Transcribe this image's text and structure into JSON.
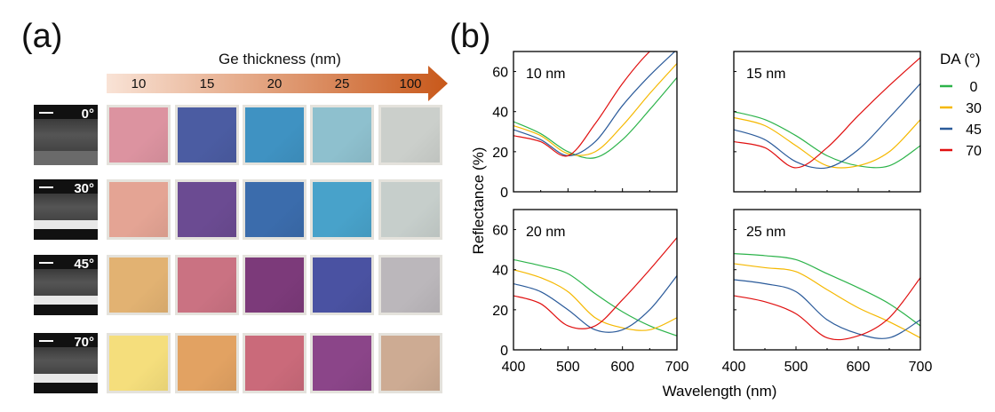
{
  "panel_a": {
    "label": "(a)",
    "arrow_title": "Ge thickness (nm)",
    "thickness_labels": [
      "10",
      "15",
      "20",
      "25",
      "100"
    ],
    "arrow_colors": [
      "#f9e3d6",
      "#c8581a"
    ],
    "rows": [
      {
        "angle": "0°",
        "colors": [
          "#dc93a0",
          "#4b5ca2",
          "#3f92c2",
          "#8ec0ce",
          "#cbcfcb"
        ]
      },
      {
        "angle": "30°",
        "colors": [
          "#e4a494",
          "#6b4b92",
          "#3b6cac",
          "#48a2ca",
          "#c6cecb"
        ]
      },
      {
        "angle": "45°",
        "colors": [
          "#e2b272",
          "#ca7282",
          "#7c3a7a",
          "#4a52a2",
          "#bbb7bb"
        ]
      },
      {
        "angle": "70°",
        "colors": [
          "#f5de7c",
          "#e2a262",
          "#ca6a7a",
          "#8b4589",
          "#cdab93"
        ]
      }
    ]
  },
  "panel_b": {
    "label": "(b)"
  },
  "chart_data": {
    "type": "line",
    "xlabel": "Wavelength (nm)",
    "ylabel": "Reflectance (%)",
    "xlim": [
      400,
      700
    ],
    "ylim": [
      0,
      70
    ],
    "xticks": [
      400,
      500,
      600,
      700
    ],
    "yticks": [
      0,
      20,
      40,
      60
    ],
    "legend": {
      "title": "DA (°)",
      "placement": "right",
      "entries": [
        {
          "name": "0",
          "color": "#2cb34a"
        },
        {
          "name": "30",
          "color": "#f5b800"
        },
        {
          "name": "45",
          "color": "#2a5a9a"
        },
        {
          "name": "70",
          "color": "#e01010"
        }
      ]
    },
    "x": [
      400,
      450,
      500,
      550,
      600,
      650,
      700
    ],
    "subplots": [
      {
        "title": "10 nm",
        "series": [
          {
            "name": "0",
            "values": [
              35,
              29,
              20,
              17,
              26,
              41,
              57
            ]
          },
          {
            "name": "30",
            "values": [
              33,
              28,
              19,
              20,
              33,
              49,
              64
            ]
          },
          {
            "name": "45",
            "values": [
              31,
              26,
              18,
              25,
              43,
              58,
              71
            ]
          },
          {
            "name": "70",
            "values": [
              28,
              25,
              18,
              34,
              54,
              70,
              80
            ]
          }
        ]
      },
      {
        "title": "15 nm",
        "series": [
          {
            "name": "0",
            "values": [
              40,
              36,
              28,
              18,
              13,
              13,
              23
            ]
          },
          {
            "name": "30",
            "values": [
              37,
              33,
              23,
              13,
              13,
              20,
              36
            ]
          },
          {
            "name": "45",
            "values": [
              31,
              26,
              15,
              12,
              21,
              37,
              54
            ]
          },
          {
            "name": "70",
            "values": [
              25,
              22,
              12,
              22,
              38,
              53,
              67
            ]
          }
        ]
      },
      {
        "title": "20 nm",
        "series": [
          {
            "name": "0",
            "values": [
              45,
              42,
              38,
              28,
              19,
              12,
              7
            ]
          },
          {
            "name": "30",
            "values": [
              40,
              36,
              29,
              16,
              11,
              10,
              16
            ]
          },
          {
            "name": "45",
            "values": [
              33,
              29,
              20,
              10,
              10,
              20,
              37
            ]
          },
          {
            "name": "70",
            "values": [
              27,
              23,
              12,
              12,
              25,
              40,
              56
            ]
          }
        ]
      },
      {
        "title": "25 nm",
        "series": [
          {
            "name": "0",
            "values": [
              48,
              47,
              45,
              38,
              31,
              23,
              12
            ]
          },
          {
            "name": "30",
            "values": [
              43,
              41,
              39,
              30,
              21,
              14,
              6
            ]
          },
          {
            "name": "45",
            "values": [
              35,
              33,
              29,
              15,
              8,
              6,
              15
            ]
          },
          {
            "name": "70",
            "values": [
              27,
              24,
              18,
              6,
              7,
              16,
              36
            ]
          }
        ]
      }
    ]
  }
}
